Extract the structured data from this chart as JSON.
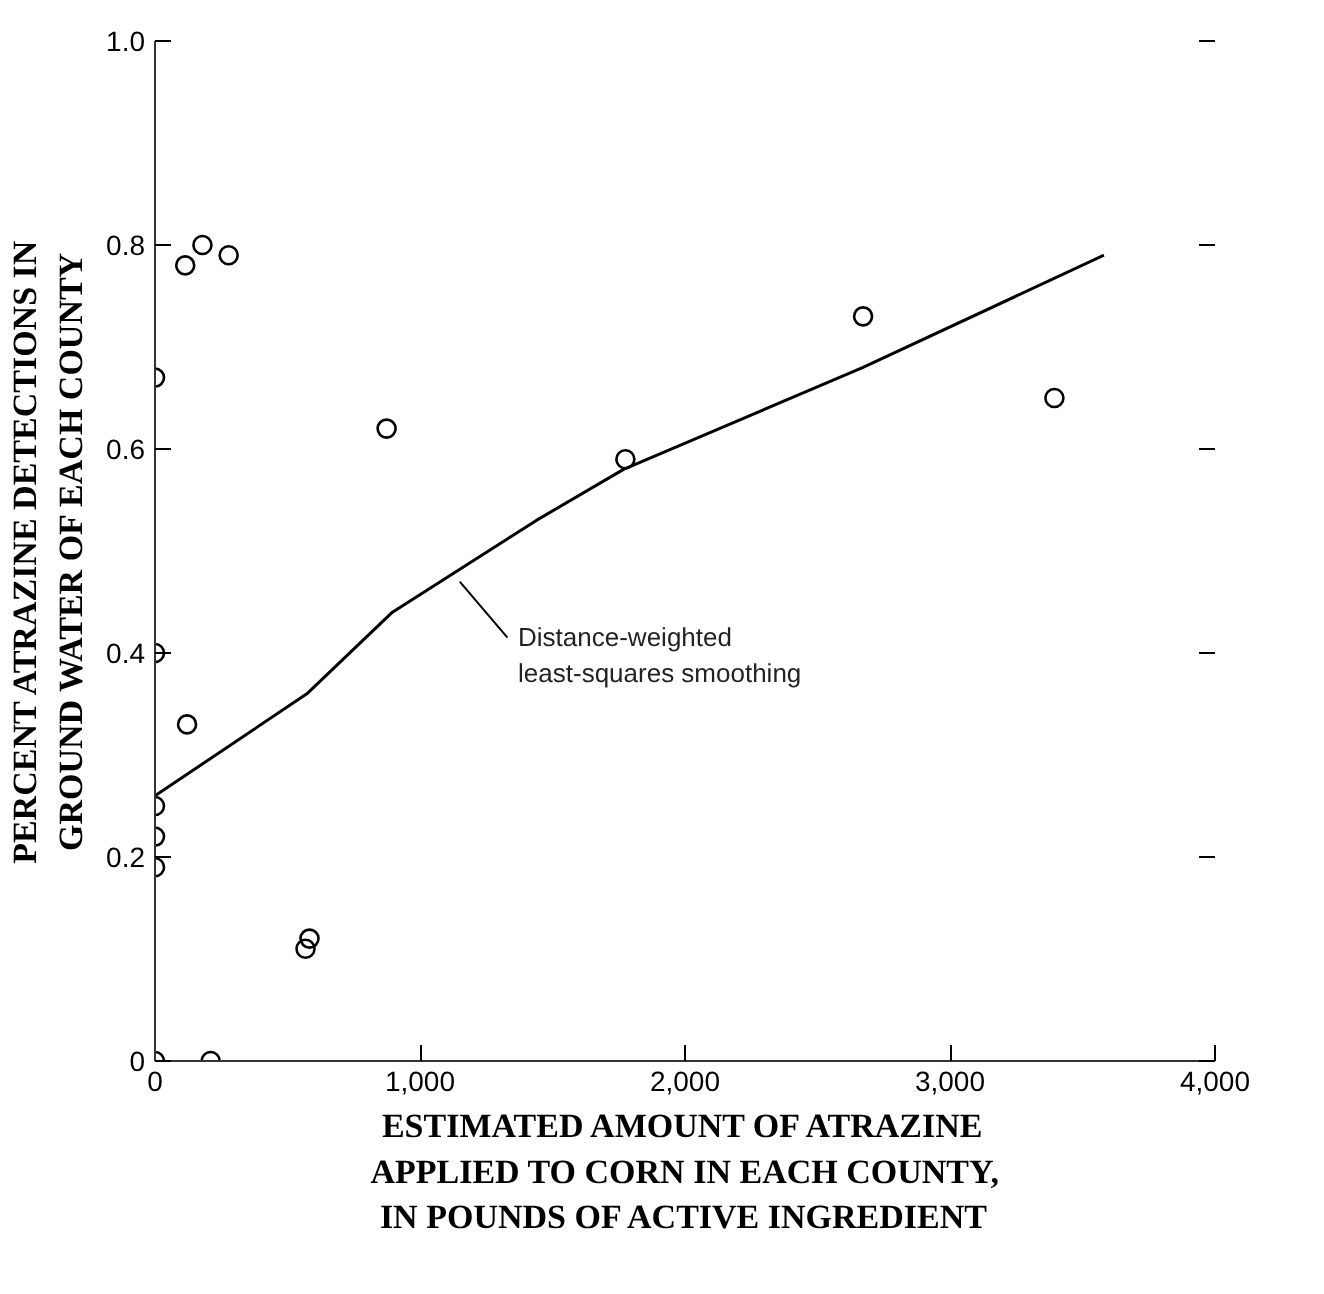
{
  "chart_data": {
    "type": "scatter",
    "xlabel": "ESTIMATED AMOUNT OF ATRAZINE\nAPPLIED TO CORN IN EACH COUNTY,\nIN POUNDS OF ACTIVE INGREDIENT",
    "ylabel": "PERCENT ATRAZINE DETECTIONS IN\nGROUND WATER OF EACH COUNTY",
    "xlim": [
      0,
      4000
    ],
    "ylim": [
      0,
      1
    ],
    "xticks": [
      0,
      {
        "value": 1000,
        "label": "1,000"
      },
      {
        "value": 2000,
        "label": "2,000"
      },
      {
        "value": 3000,
        "label": "3,000"
      },
      {
        "value": 4000,
        "label": "4,000"
      }
    ],
    "yticks": [
      0,
      0.2,
      0.4,
      0.6,
      0.8,
      {
        "value": 1,
        "label": "1.0"
      }
    ],
    "grid": false,
    "series": [
      {
        "color": "#000000",
        "marker": "circle",
        "x": [
          0,
          210,
          568,
          583,
          0,
          0,
          0,
          121,
          0,
          0,
          874,
          114,
          179,
          278,
          1775,
          2672,
          3394
        ],
        "values": [
          0,
          0,
          0.11,
          0.12,
          0.19,
          0.22,
          0.25,
          0.33,
          0.4,
          0.67,
          0.62,
          0.78,
          0.8,
          0.79,
          0.59,
          0.73,
          0.65
        ]
      },
      {
        "type": "line",
        "color": "#000000",
        "marker": "none",
        "line_style": "solid",
        "x": [
          0,
          573,
          896,
          1439,
          1768,
          2672,
          3581
        ],
        "values": [
          0.26,
          0.36,
          0.44,
          0.53,
          0.58,
          0.68,
          0.79
        ]
      }
    ],
    "annotations": [
      {
        "text": "Distance-weighted\nleast-squares smoothing",
        "x": 1150,
        "y": 0.47
      }
    ]
  }
}
